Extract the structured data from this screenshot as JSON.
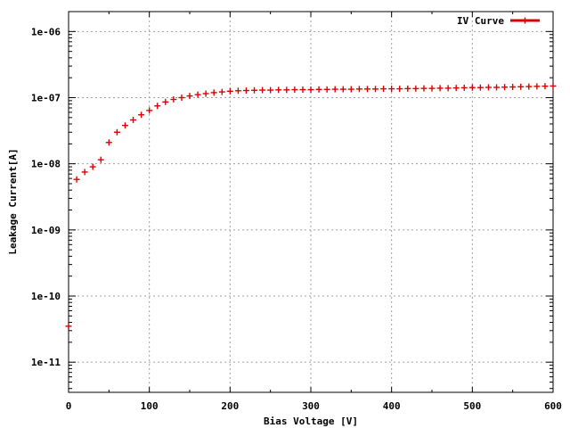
{
  "chart_data": {
    "type": "scatter",
    "title": "",
    "xlabel": "Bias Voltage [V]",
    "ylabel": "Leakage Current[A]",
    "xlim": [
      0,
      600
    ],
    "ylim": [
      3.5e-12,
      2e-06
    ],
    "yscale": "log",
    "grid": true,
    "legend_position": "top-right",
    "x_ticks": [
      {
        "value": 0,
        "label": "0"
      },
      {
        "value": 100,
        "label": "100"
      },
      {
        "value": 200,
        "label": "200"
      },
      {
        "value": 300,
        "label": "300"
      },
      {
        "value": 400,
        "label": "400"
      },
      {
        "value": 500,
        "label": "500"
      },
      {
        "value": 600,
        "label": "600"
      }
    ],
    "y_ticks": [
      {
        "value": 1e-11,
        "label": "1e-11"
      },
      {
        "value": 1e-10,
        "label": "1e-10"
      },
      {
        "value": 1e-09,
        "label": "1e-09"
      },
      {
        "value": 1e-08,
        "label": "1e-08"
      },
      {
        "value": 1e-07,
        "label": "1e-07"
      },
      {
        "value": 1e-06,
        "label": "1e-06"
      }
    ],
    "series": [
      {
        "name": "IV Curve",
        "color": "#dd0000",
        "marker": "plus",
        "x": [
          0,
          10,
          20,
          30,
          40,
          50,
          60,
          70,
          80,
          90,
          100,
          110,
          120,
          130,
          140,
          150,
          160,
          170,
          180,
          190,
          200,
          210,
          220,
          230,
          240,
          250,
          260,
          270,
          280,
          290,
          300,
          310,
          320,
          330,
          340,
          350,
          360,
          370,
          380,
          390,
          400,
          410,
          420,
          430,
          440,
          450,
          460,
          470,
          480,
          490,
          500,
          510,
          520,
          530,
          540,
          550,
          560,
          570,
          580,
          590,
          600
        ],
        "y": [
          3.5e-11,
          5.8e-09,
          7.5e-09,
          9e-09,
          1.15e-08,
          2.1e-08,
          3e-08,
          3.8e-08,
          4.6e-08,
          5.5e-08,
          6.4e-08,
          7.5e-08,
          8.6e-08,
          9.4e-08,
          1e-07,
          1.06e-07,
          1.11e-07,
          1.15e-07,
          1.19e-07,
          1.22e-07,
          1.25e-07,
          1.27e-07,
          1.28e-07,
          1.29e-07,
          1.3e-07,
          1.3e-07,
          1.31e-07,
          1.31e-07,
          1.32e-07,
          1.32e-07,
          1.32e-07,
          1.33e-07,
          1.33e-07,
          1.34e-07,
          1.34e-07,
          1.34e-07,
          1.35e-07,
          1.35e-07,
          1.35e-07,
          1.36e-07,
          1.36e-07,
          1.36e-07,
          1.37e-07,
          1.37e-07,
          1.38e-07,
          1.38e-07,
          1.39e-07,
          1.39e-07,
          1.4e-07,
          1.41e-07,
          1.42e-07,
          1.42e-07,
          1.43e-07,
          1.43e-07,
          1.44e-07,
          1.45e-07,
          1.46e-07,
          1.47e-07,
          1.48e-07,
          1.49e-07,
          1.5e-07
        ]
      }
    ]
  }
}
